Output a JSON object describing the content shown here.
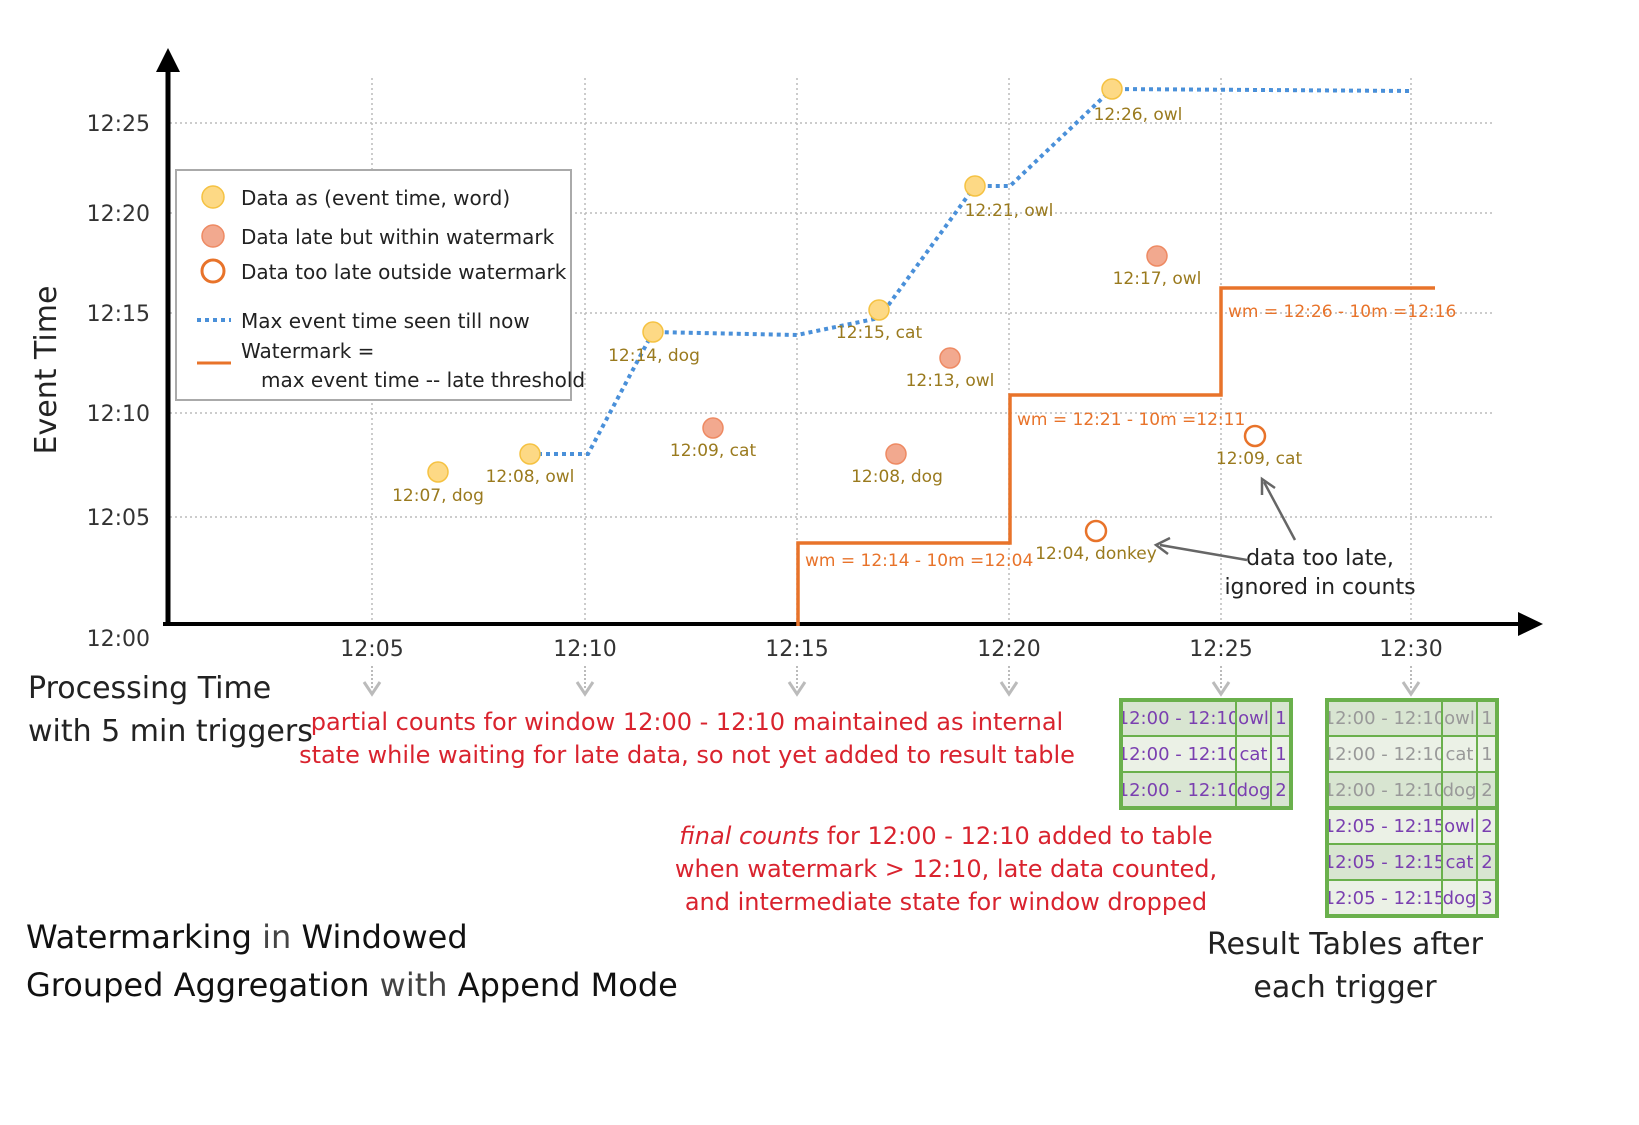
{
  "axes": {
    "y_label": "Event Time",
    "y_ticks": [
      "12:25",
      "12:20",
      "12:15",
      "12:10",
      "12:05",
      "12:00"
    ],
    "x_ticks": [
      "12:05",
      "12:10",
      "12:15",
      "12:20",
      "12:25",
      "12:30"
    ],
    "x_label_line1": "Processing Time",
    "x_label_line2": "with 5 min triggers"
  },
  "legend": {
    "on_time": "Data as (event time, word)",
    "late_within": "Data late but within watermark",
    "too_late": "Data too late outside watermark",
    "max_event": "Max event time seen till now",
    "watermark_line1": "Watermark =",
    "watermark_line2": "max event time -- late threshold"
  },
  "colors": {
    "on_time": "#fdd985",
    "late_within": "#f2a98f",
    "too_late": "#e8732a",
    "max_event_line": "#4a90d9",
    "watermark_line": "#e8732a",
    "note_text": "#d9232e",
    "table_border": "#6ab04c",
    "table_text": "#7a3fb0"
  },
  "events": [
    {
      "label": "12:07, dog",
      "type": "on_time"
    },
    {
      "label": "12:08, owl",
      "type": "on_time"
    },
    {
      "label": "12:14, dog",
      "type": "on_time"
    },
    {
      "label": "12:09, cat",
      "type": "late_within"
    },
    {
      "label": "12:15, cat",
      "type": "on_time"
    },
    {
      "label": "12:08, dog",
      "type": "late_within"
    },
    {
      "label": "12:13, owl",
      "type": "late_within"
    },
    {
      "label": "12:21, owl",
      "type": "on_time"
    },
    {
      "label": "12:04, donkey",
      "type": "too_late"
    },
    {
      "label": "12:26, owl",
      "type": "on_time"
    },
    {
      "label": "12:17, owl",
      "type": "late_within"
    },
    {
      "label": "12:09, cat",
      "type": "too_late"
    }
  ],
  "watermarks": [
    "wm = 12:14 - 10m =12:04",
    "wm = 12:21 - 10m =12:11",
    "wm = 12:26 - 10m =12:16"
  ],
  "annotations": {
    "too_late_line1": "data too late,",
    "too_late_line2": "ignored in counts",
    "partial_line1": "partial counts for window 12:00 - 12:10 maintained as internal",
    "partial_line2": "state while waiting for late data, so not yet added  to result table",
    "final_emph": "final counts",
    "final_line1_rest": " for 12:00 - 12:10 added to table",
    "final_line2": "when watermark > 12:10, late data counted,",
    "final_line3": "and intermediate state for window dropped"
  },
  "tables": {
    "t1": [
      [
        "12:00 - 12:10",
        "owl",
        "1"
      ],
      [
        "12:00 - 12:10",
        "cat",
        "1"
      ],
      [
        "12:00 - 12:10",
        "dog",
        "2"
      ]
    ],
    "t2": [
      [
        "12:00 - 12:10",
        "owl",
        "1"
      ],
      [
        "12:00 - 12:10",
        "cat",
        "1"
      ],
      [
        "12:00 - 12:10",
        "dog",
        "2"
      ],
      [
        "12:05 - 12:15",
        "owl",
        "2"
      ],
      [
        "12:05 - 12:15",
        "cat",
        "2"
      ],
      [
        "12:05 - 12:15",
        "dog",
        "3"
      ]
    ],
    "caption_line1": "Result Tables after",
    "caption_line2": "each trigger"
  },
  "title": {
    "w1": "Watermarking",
    "w2": " in ",
    "w3": "Windowed",
    "w4": "Grouped Aggregation",
    "w5": " with ",
    "w6": "Append Mode"
  }
}
